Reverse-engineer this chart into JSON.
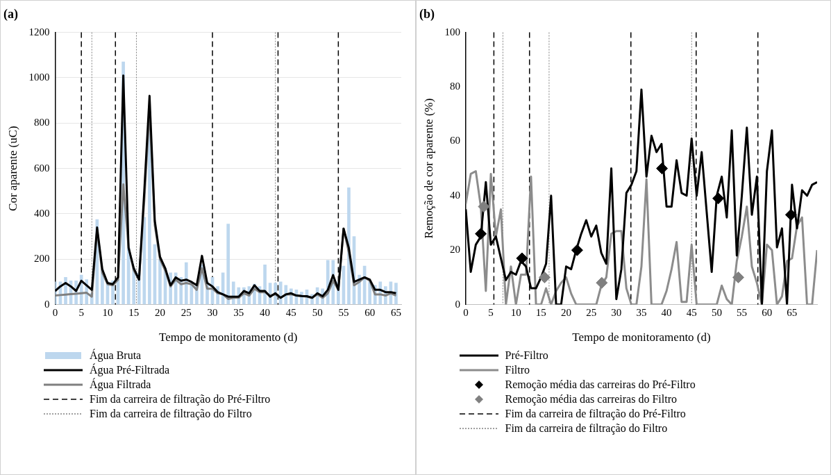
{
  "chart_data": [
    {
      "type": "bar",
      "title": "(a)",
      "xlabel": "Tempo de monitoramento (d)",
      "ylabel": "Cor aparente (uC)",
      "x": [
        0,
        1,
        2,
        3,
        4,
        5,
        6,
        7,
        8,
        9,
        10,
        11,
        12,
        13,
        14,
        15,
        16,
        17,
        18,
        19,
        20,
        21,
        22,
        23,
        24,
        25,
        26,
        27,
        28,
        29,
        30,
        31,
        32,
        33,
        34,
        35,
        36,
        37,
        38,
        39,
        40,
        41,
        42,
        43,
        44,
        45,
        46,
        47,
        48,
        49,
        50,
        51,
        52,
        53,
        54,
        55,
        56,
        57,
        58,
        59,
        60,
        61,
        62,
        63,
        64,
        65
      ],
      "xlim": [
        0,
        66
      ],
      "xticks": [
        0,
        5,
        10,
        15,
        20,
        25,
        30,
        35,
        40,
        45,
        50,
        55,
        60,
        65
      ],
      "ylim": [
        0,
        1200
      ],
      "yticks": [
        0,
        200,
        400,
        600,
        800,
        1000,
        1200
      ],
      "grid": "y",
      "legend": "bottom",
      "series": [
        {
          "name": "Água Bruta",
          "color": "#bdd7ee",
          "values": [
            100,
            100,
            120,
            105,
            105,
            130,
            110,
            50,
            375,
            155,
            100,
            105,
            110,
            1070,
            250,
            160,
            140,
            385,
            850,
            265,
            200,
            160,
            140,
            140,
            120,
            185,
            100,
            90,
            175,
            100,
            120,
            80,
            140,
            355,
            100,
            75,
            75,
            80,
            90,
            80,
            175,
            95,
            95,
            100,
            85,
            70,
            65,
            55,
            65,
            45,
            75,
            70,
            195,
            195,
            100,
            170,
            515,
            300,
            130,
            170,
            100,
            85,
            100,
            80,
            100,
            95
          ]
        },
        {
          "name": "Água Pré-Filtrada",
          "type": "line",
          "color": "#000000",
          "values": [
            60,
            80,
            95,
            80,
            60,
            105,
            85,
            65,
            340,
            155,
            95,
            90,
            120,
            1010,
            250,
            160,
            110,
            500,
            920,
            370,
            210,
            160,
            85,
            120,
            105,
            110,
            100,
            85,
            215,
            95,
            80,
            55,
            45,
            35,
            35,
            35,
            60,
            50,
            85,
            60,
            60,
            35,
            50,
            30,
            45,
            50,
            40,
            38,
            37,
            30,
            50,
            37,
            65,
            130,
            65,
            335,
            250,
            100,
            110,
            120,
            110,
            65,
            65,
            55,
            55,
            50
          ]
        },
        {
          "name": "Água Filtrada",
          "type": "line",
          "color": "#7f7f7f",
          "values": [
            40,
            42,
            44,
            46,
            48,
            50,
            52,
            35,
            330,
            140,
            90,
            85,
            110,
            530,
            255,
            150,
            110,
            460,
            860,
            350,
            200,
            150,
            80,
            110,
            90,
            95,
            90,
            65,
            160,
            70,
            70,
            50,
            45,
            25,
            30,
            30,
            50,
            40,
            70,
            55,
            55,
            40,
            45,
            30,
            45,
            45,
            40,
            38,
            35,
            30,
            45,
            30,
            50,
            105,
            65,
            335,
            230,
            85,
            100,
            120,
            105,
            45,
            45,
            40,
            50,
            40
          ]
        }
      ],
      "ref_lines": [
        {
          "axis": "x",
          "value": 5,
          "label": "Fim da carreira de filtração do Pré-Filtro",
          "color": "#000000",
          "line_style": "dashed"
        },
        {
          "axis": "x",
          "value": 11.5,
          "color": "#000000",
          "line_style": "dashed"
        },
        {
          "axis": "x",
          "value": 30,
          "color": "#000000",
          "line_style": "dashed"
        },
        {
          "axis": "x",
          "value": 42.5,
          "color": "#000000",
          "line_style": "dashed"
        },
        {
          "axis": "x",
          "value": 54,
          "color": "#000000",
          "line_style": "dashed"
        },
        {
          "axis": "x",
          "value": 7,
          "label": "Fim da carreira de filtração do Filtro",
          "color": "#808080",
          "line_style": "dotted"
        },
        {
          "axis": "x",
          "value": 15.5,
          "color": "#808080",
          "line_style": "dotted"
        },
        {
          "axis": "x",
          "value": 42,
          "color": "#808080",
          "line_style": "dotted"
        }
      ]
    },
    {
      "type": "line",
      "title": "(b)",
      "xlabel": "Tempo de monitoramento (d)",
      "ylabel": "Remoção de cor aparente (%)",
      "x": [
        0,
        1,
        2,
        3,
        4,
        5,
        6,
        7,
        8,
        9,
        10,
        11,
        12,
        13,
        14,
        15,
        16,
        17,
        18,
        19,
        20,
        21,
        22,
        23,
        24,
        25,
        26,
        27,
        28,
        29,
        30,
        31,
        32,
        33,
        34,
        35,
        36,
        37,
        38,
        39,
        40,
        41,
        42,
        43,
        44,
        45,
        46,
        47,
        48,
        49,
        50,
        51,
        52,
        53,
        54,
        55,
        56,
        57,
        58,
        59,
        60,
        61,
        62,
        63,
        64,
        65,
        66,
        67,
        68,
        69,
        70
      ],
      "xlim": [
        0,
        70
      ],
      "xticks": [
        0,
        5,
        10,
        15,
        20,
        25,
        30,
        35,
        40,
        45,
        50,
        55,
        60,
        65
      ],
      "ylim": [
        0,
        100
      ],
      "yticks": [
        0,
        20,
        40,
        60,
        80,
        100
      ],
      "legend": "bottom",
      "series": [
        {
          "name": "Pré-Filtro",
          "color": "#000000",
          "values": [
            35,
            12,
            22,
            25,
            45,
            22,
            25,
            17,
            9,
            12,
            11,
            16,
            14,
            6,
            6,
            10,
            15,
            40,
            0,
            0,
            14,
            13,
            20,
            26,
            31,
            25,
            29,
            19,
            15,
            50,
            2,
            13,
            41,
            44,
            49,
            79,
            47,
            62,
            56,
            59,
            36,
            36,
            53,
            41,
            40,
            61,
            40,
            56,
            34,
            12,
            40,
            47,
            32,
            64,
            18,
            40,
            65,
            33,
            47,
            0,
            49,
            64,
            21,
            28,
            0,
            44,
            28,
            42,
            40,
            44,
            45
          ]
        },
        {
          "name": "Filtro",
          "color": "#8c8c8c",
          "values": [
            37,
            48,
            49,
            36,
            5,
            48,
            25,
            35,
            0,
            14,
            0,
            11,
            11,
            47,
            0,
            0,
            6,
            0,
            5,
            8,
            10,
            4,
            0,
            0,
            0,
            0,
            0,
            7,
            10,
            26,
            27,
            27,
            6,
            0,
            0,
            14,
            46,
            0,
            0,
            0,
            5,
            13,
            23,
            1,
            1,
            22,
            0,
            0,
            0,
            0,
            0,
            7,
            2,
            0,
            16,
            25,
            36,
            14,
            8,
            0,
            22,
            20,
            0,
            3,
            16,
            17,
            29,
            32,
            0,
            0,
            20
          ]
        },
        {
          "name": "Remoção média das carreiras do Pré-Filtro",
          "type": "scatter",
          "marker": "diamond",
          "color": "#000000",
          "x": [
            3,
            11.2,
            22.2,
            39.1,
            50.3,
            64.8
          ],
          "values": [
            26,
            17,
            20,
            50,
            39,
            33
          ]
        },
        {
          "name": "Remoção média das carreiras do Filtro",
          "type": "scatter",
          "marker": "diamond",
          "color": "#808080",
          "x": [
            3.6,
            15.7,
            27.1,
            54.3
          ],
          "values": [
            36,
            10,
            8,
            10
          ]
        }
      ],
      "ref_lines": [
        {
          "axis": "x",
          "value": 5.6,
          "label": "Fim da carreira de filtração do Pré-Filtro",
          "color": "#000000",
          "line_style": "dashed"
        },
        {
          "axis": "x",
          "value": 12.7,
          "color": "#000000",
          "line_style": "dashed"
        },
        {
          "axis": "x",
          "value": 32.9,
          "color": "#000000",
          "line_style": "dashed"
        },
        {
          "axis": "x",
          "value": 45.9,
          "color": "#000000",
          "line_style": "dashed"
        },
        {
          "axis": "x",
          "value": 58.2,
          "color": "#000000",
          "line_style": "dashed"
        },
        {
          "axis": "x",
          "value": 7.4,
          "label": "Fim da carreira de filtração do Filtro",
          "color": "#808080",
          "line_style": "dotted"
        },
        {
          "axis": "x",
          "value": 16.6,
          "color": "#808080",
          "line_style": "dotted"
        },
        {
          "axis": "x",
          "value": 45,
          "color": "#808080",
          "line_style": "dotted"
        }
      ]
    }
  ]
}
